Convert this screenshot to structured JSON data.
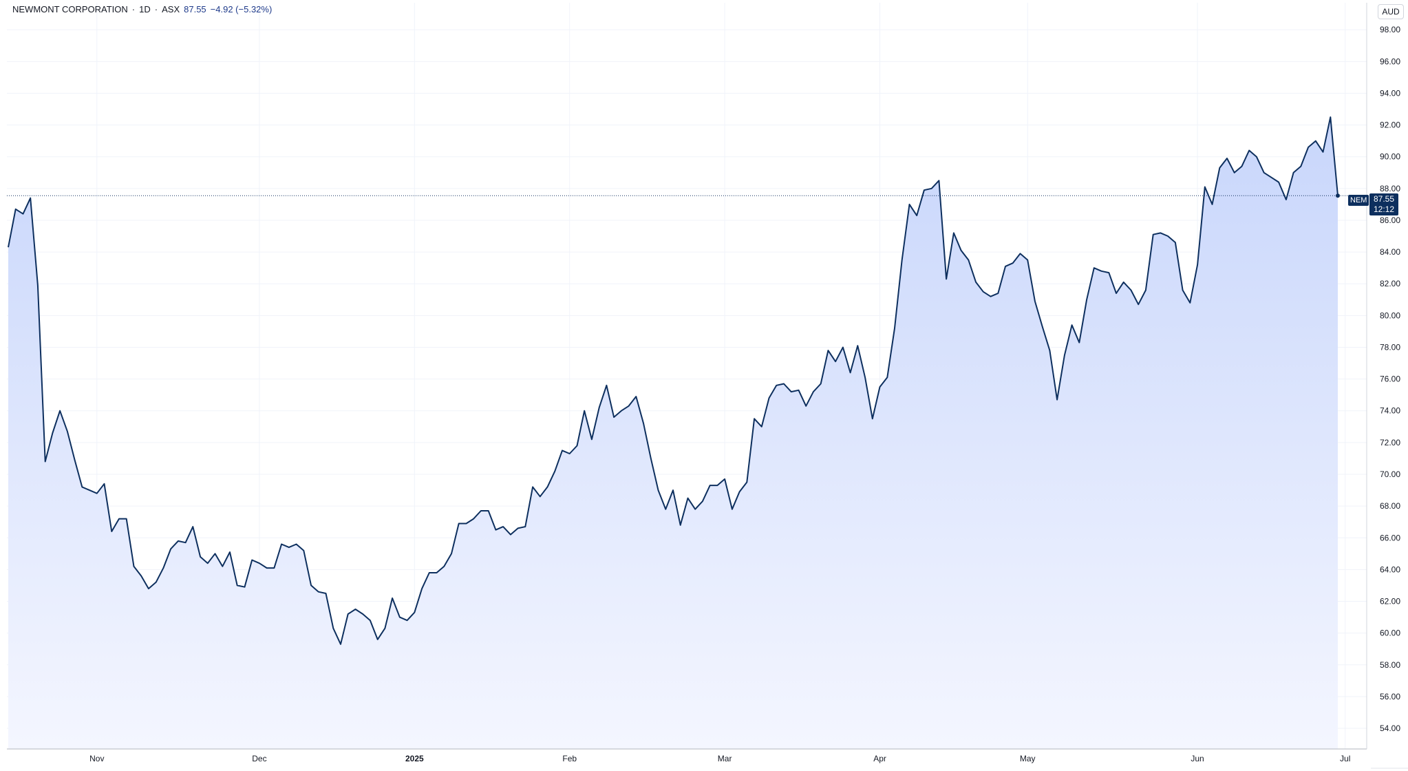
{
  "legend": {
    "name": "NEWMONT CORPORATION",
    "interval": "1D",
    "exchange": "ASX",
    "sep": "·",
    "last": "87.55",
    "change": "−4.92 (−5.32%)"
  },
  "currency": "AUD",
  "price_label": {
    "ticker": "NEM",
    "value": "87.55",
    "countdown": "12:12"
  },
  "colors": {
    "line": "#0d2f5e",
    "fill_top": "#c8d6fb",
    "fill_bottom": "#f4f6ff",
    "grid": "#f0f3fa",
    "badge": "#0d2f5e"
  },
  "chart_data": {
    "type": "area",
    "series": [
      {
        "name": "NEM",
        "x_start_index": 0,
        "values": [
          84.3,
          86.7,
          86.4,
          87.4,
          81.9,
          70.8,
          72.6,
          74.0,
          72.7,
          70.9,
          69.2,
          69.0,
          68.8,
          69.4,
          66.4,
          67.2,
          67.2,
          64.2,
          63.6,
          62.8,
          63.2,
          64.1,
          65.3,
          65.8,
          65.7,
          66.7,
          64.8,
          64.4,
          65.0,
          64.2,
          65.1,
          63.0,
          62.9,
          64.6,
          64.4,
          64.1,
          64.1,
          65.6,
          65.4,
          65.6,
          65.2,
          63.0,
          62.6,
          62.5,
          60.3,
          59.3,
          61.2,
          61.5,
          61.2,
          60.8,
          59.6,
          60.3,
          62.2,
          61.0,
          60.8,
          61.3,
          62.8,
          63.8,
          63.8,
          64.2,
          65.0,
          66.9,
          66.9,
          67.2,
          67.7,
          67.7,
          66.5,
          66.7,
          66.2,
          66.6,
          66.7,
          69.2,
          68.6,
          69.2,
          70.2,
          71.5,
          71.3,
          71.8,
          74.0,
          72.2,
          74.2,
          75.6,
          73.6,
          74.0,
          74.3,
          74.9,
          73.2,
          71.0,
          69.0,
          67.8,
          69.0,
          66.8,
          68.5,
          67.8,
          68.3,
          69.3,
          69.3,
          69.7,
          67.8,
          68.9,
          69.5,
          73.5,
          73.0,
          74.8,
          75.6,
          75.7,
          75.2,
          75.3,
          74.3,
          75.2,
          75.7,
          77.8,
          77.1,
          78.0,
          76.4,
          78.1,
          76.1,
          73.5,
          75.5,
          76.1,
          79.2,
          83.5,
          87.0,
          86.3,
          87.9,
          88.0,
          88.5,
          82.3,
          85.2,
          84.1,
          83.5,
          82.1,
          81.5,
          81.2,
          81.4,
          83.1,
          83.3,
          83.9,
          83.5,
          80.9,
          79.3,
          77.8,
          74.7,
          77.5,
          79.4,
          78.3,
          81.0,
          83.0,
          82.8,
          82.7,
          81.4,
          82.1,
          81.6,
          80.7,
          81.6,
          85.1,
          85.2,
          85.0,
          84.6,
          81.6,
          80.8,
          83.2,
          88.1,
          87.0,
          89.3,
          89.9,
          89.0,
          89.4,
          90.4,
          90.0,
          89.0,
          88.7,
          88.4,
          87.3,
          89.0,
          89.4,
          90.6,
          91.0,
          90.3,
          92.5,
          87.55
        ]
      }
    ],
    "y_ticks": [
      "54.00",
      "56.00",
      "58.00",
      "60.00",
      "62.00",
      "64.00",
      "66.00",
      "68.00",
      "70.00",
      "72.00",
      "74.00",
      "76.00",
      "78.00",
      "80.00",
      "82.00",
      "84.00",
      "86.00",
      "88.00",
      "90.00",
      "92.00",
      "94.00",
      "96.00",
      "98.00"
    ],
    "x_labels": [
      {
        "label": "Nov",
        "index": 12,
        "bold": false
      },
      {
        "label": "Dec",
        "index": 34,
        "bold": false
      },
      {
        "label": "2025",
        "index": 55,
        "bold": true
      },
      {
        "label": "Feb",
        "index": 76,
        "bold": false
      },
      {
        "label": "Mar",
        "index": 97,
        "bold": false
      },
      {
        "label": "Apr",
        "index": 118,
        "bold": false
      },
      {
        "label": "May",
        "index": 138,
        "bold": false
      },
      {
        "label": "Jun",
        "index": 161,
        "bold": false
      },
      {
        "label": "Jul",
        "index": 181,
        "bold": false
      }
    ],
    "ylim": [
      52.7,
      99.7
    ],
    "last_value": 87.55,
    "grid": true,
    "title": "",
    "xlabel": "",
    "ylabel": ""
  }
}
